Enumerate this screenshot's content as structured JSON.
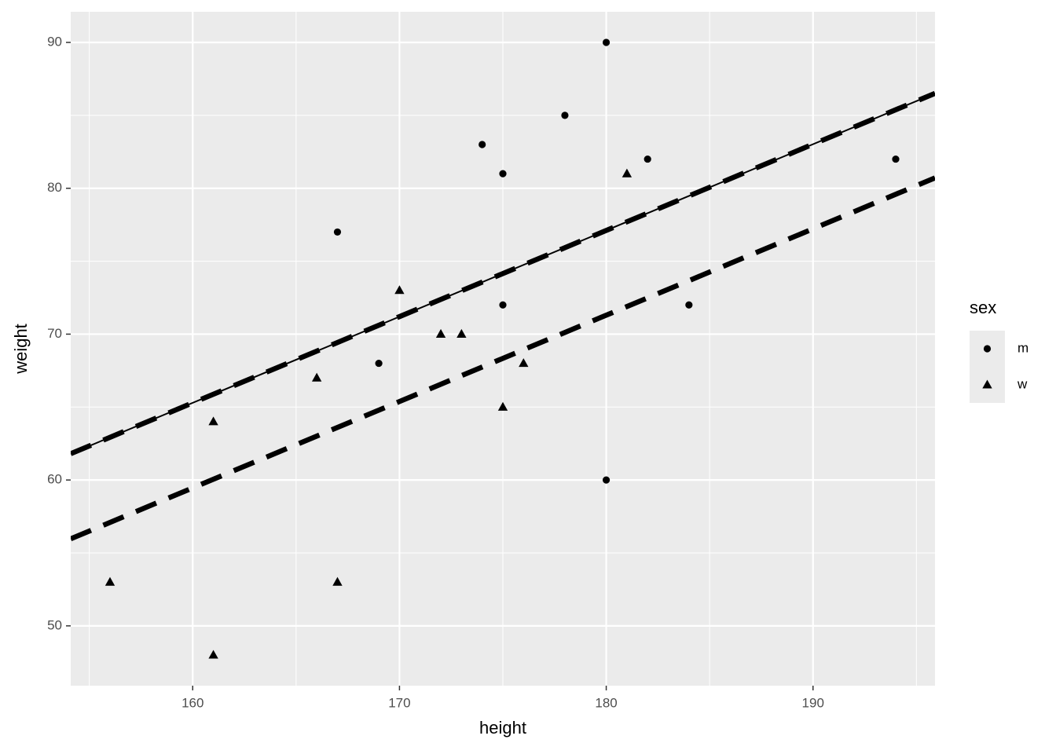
{
  "chart_data": {
    "type": "scatter",
    "x_label": "height",
    "y_label": "weight",
    "xlim": [
      154.1,
      195.9
    ],
    "ylim": [
      45.9,
      92.1
    ],
    "xticks": [
      160,
      170,
      180,
      190
    ],
    "yticks": [
      50,
      60,
      70,
      80,
      90
    ],
    "x_minor_grid": [
      155,
      165,
      175,
      185,
      195
    ],
    "y_minor_grid": [
      55,
      65,
      75,
      85
    ],
    "grid": true,
    "legend_title": "sex",
    "legend_position": "right",
    "series": [
      {
        "name": "m",
        "color": "#000000",
        "marker": "circle",
        "x": [
          167,
          169,
          174,
          175,
          175,
          178,
          180,
          180,
          182,
          184,
          194
        ],
        "values": [
          77,
          68,
          83,
          81,
          72,
          85,
          90,
          60,
          82,
          72,
          82
        ]
      },
      {
        "name": "w",
        "color": "#000000",
        "marker": "triangle",
        "x": [
          156,
          161,
          161,
          166,
          167,
          170,
          172,
          173,
          175,
          176,
          181
        ],
        "values": [
          53,
          64,
          48,
          67,
          53,
          73,
          70,
          70,
          65,
          68,
          81
        ]
      }
    ],
    "lines": [
      {
        "intercept": -29.27,
        "slope": 0.591,
        "style": "solid"
      },
      {
        "intercept": -29.27,
        "slope": 0.591,
        "style": "dashed"
      },
      {
        "intercept": -35.26,
        "slope": 0.592,
        "style": "dashed"
      }
    ]
  }
}
